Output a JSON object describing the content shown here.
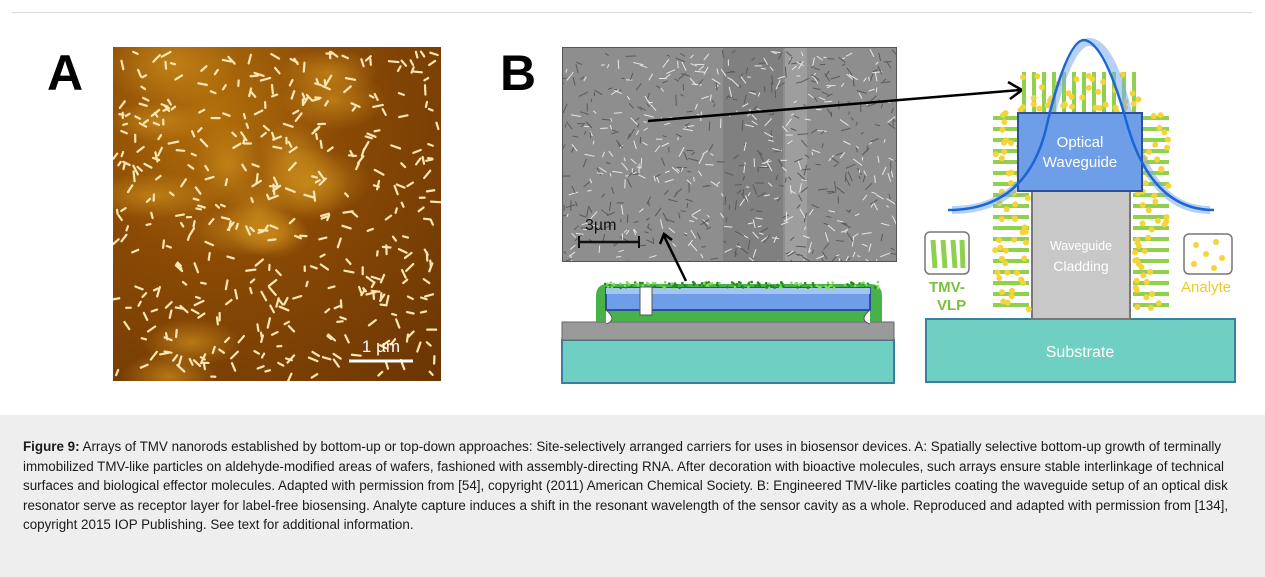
{
  "panel_a": {
    "letter": "A",
    "scale_bar_label": "1 µm"
  },
  "panel_b": {
    "letter": "B",
    "sem_scale_label": "3µm",
    "labels": {
      "optical": "Optical",
      "waveguide": "Waveguide",
      "cladding_1": "Waveguide",
      "cladding_2": "Cladding",
      "substrate": "Substrate",
      "tmv_1": "TMV-",
      "tmv_2": "VLP",
      "analyte": "Analyte"
    }
  },
  "caption": {
    "figure_label": "Figure 9:",
    "text": " Arrays of TMV nanorods established by bottom-up or top-down approaches: Site-selectively arranged carriers for uses in biosensor devices. A: Spatially selective bottom-up growth of terminally immobilized TMV-like particles on aldehyde-modified areas of wafers, fashioned with assembly-directing RNA. After decoration with bioactive molecules, such arrays ensure stable interlinkage of technical surfaces and biological effector molecules. Adapted with permission from [54], copyright (2011) American Chemical Society. B: Engineered TMV-like particles coating the waveguide setup of an optical disk resonator serve as receptor layer for label-free biosensing. Analyte capture induces a shift in the resonant wavelength of the sensor cavity as a whole. Reproduced and adapted with permission from [134], copyright 2015 IOP Publishing. See text for additional information."
  },
  "colors": {
    "afm_dark": "#6a3503",
    "afm_light": "#b3700c",
    "waveguide_blue": "#6f9ee8",
    "substrate_teal": "#6fcfc3",
    "tmv_green": "#8fd14f",
    "analyte_yellow": "#f5d33a"
  }
}
